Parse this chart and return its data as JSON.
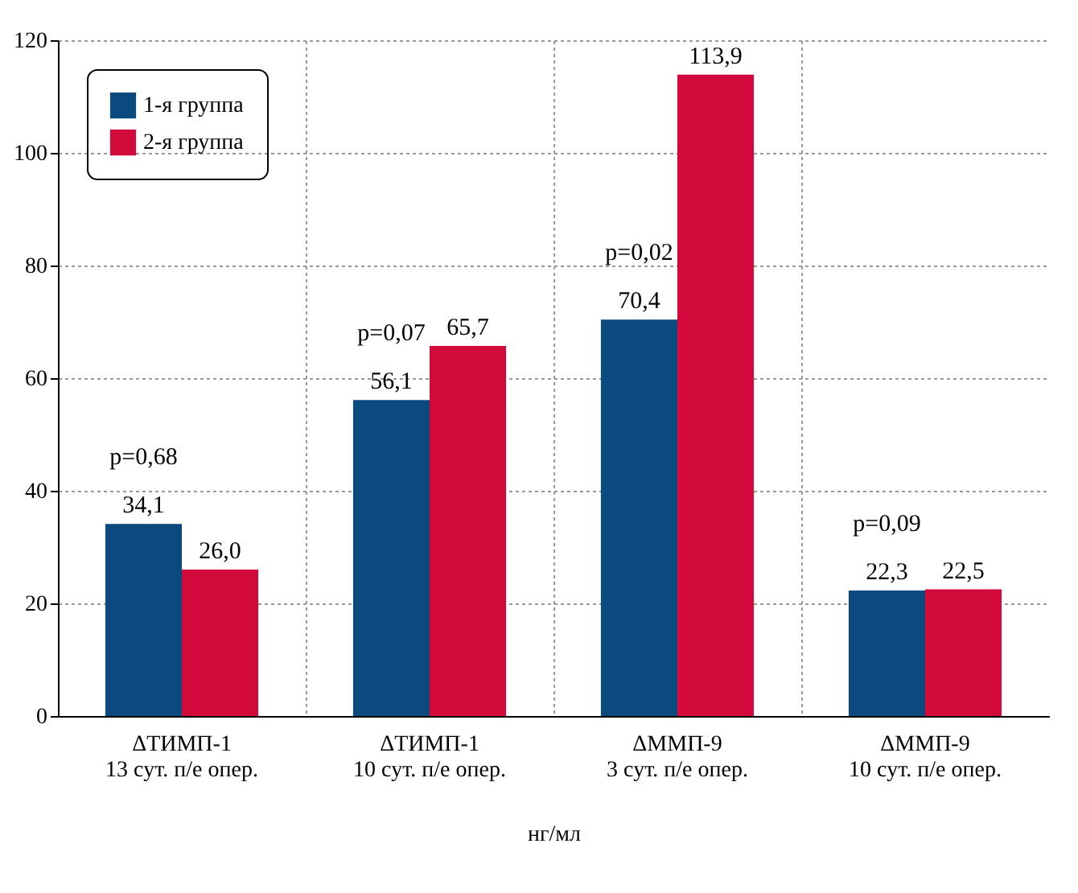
{
  "chart_data": {
    "type": "bar",
    "xlabel": "нг/мл",
    "categories": [
      "ΔТИМП-1\n13 сут. п/е опер.",
      "ΔТИМП-1\n10 сут. п/е опер.",
      "ΔММП-9\n3 сут. п/е опер.",
      "ΔММП-9\n10 сут. п/е опер."
    ],
    "series": [
      {
        "name": "1-я группа",
        "color": "#0b4a7e",
        "values": [
          34.1,
          56.1,
          70.4,
          22.3
        ],
        "value_labels": [
          "34,1",
          "56,1",
          "70,4",
          "22,3"
        ]
      },
      {
        "name": "2-я группа",
        "color": "#d20a3b",
        "values": [
          26.0,
          65.7,
          113.9,
          22.5
        ],
        "value_labels": [
          "26,0",
          "65,7",
          "113,9",
          "22,5"
        ]
      }
    ],
    "ylim": [
      0,
      120
    ],
    "yticks": [
      0,
      20,
      40,
      60,
      80,
      100,
      120
    ],
    "grid": true,
    "legend": "top left",
    "annotations": [
      "p=0,68",
      "p=0,07",
      "p=0,02",
      "p=0,09"
    ]
  }
}
